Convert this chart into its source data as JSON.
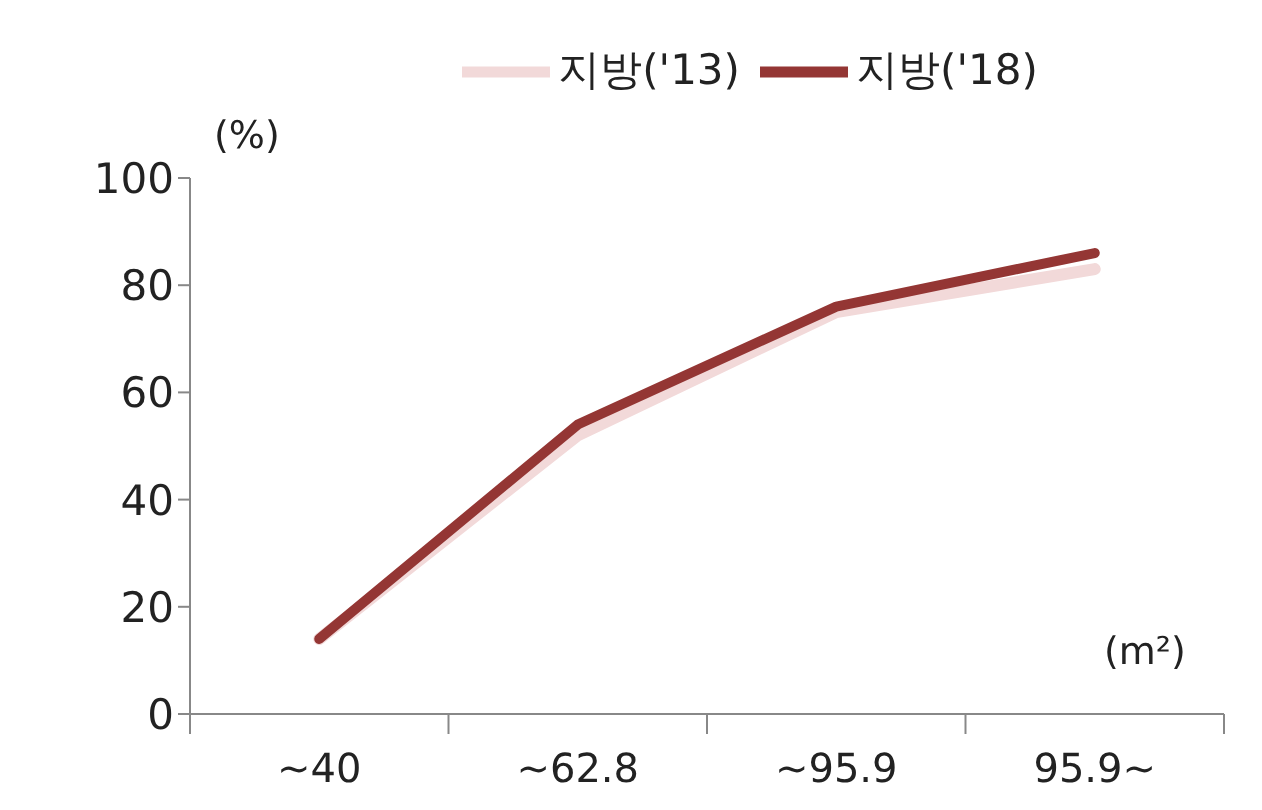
{
  "chart_data": {
    "type": "line",
    "categories": [
      "~40",
      "~62.8",
      "~95.9",
      "95.9~"
    ],
    "series": [
      {
        "name": "지방('13)",
        "color": "#f2d9d9",
        "values": [
          14,
          52,
          75,
          83
        ]
      },
      {
        "name": "지방('18)",
        "color": "#943634",
        "values": [
          14,
          54,
          76,
          86
        ]
      }
    ],
    "ylim": [
      0,
      100
    ],
    "yticks": [
      0,
      20,
      40,
      60,
      80,
      100
    ],
    "grid": false,
    "legend": "top",
    "marker": "none",
    "line_style": "solid",
    "annotations": [
      "(%)",
      "(m²)"
    ]
  }
}
